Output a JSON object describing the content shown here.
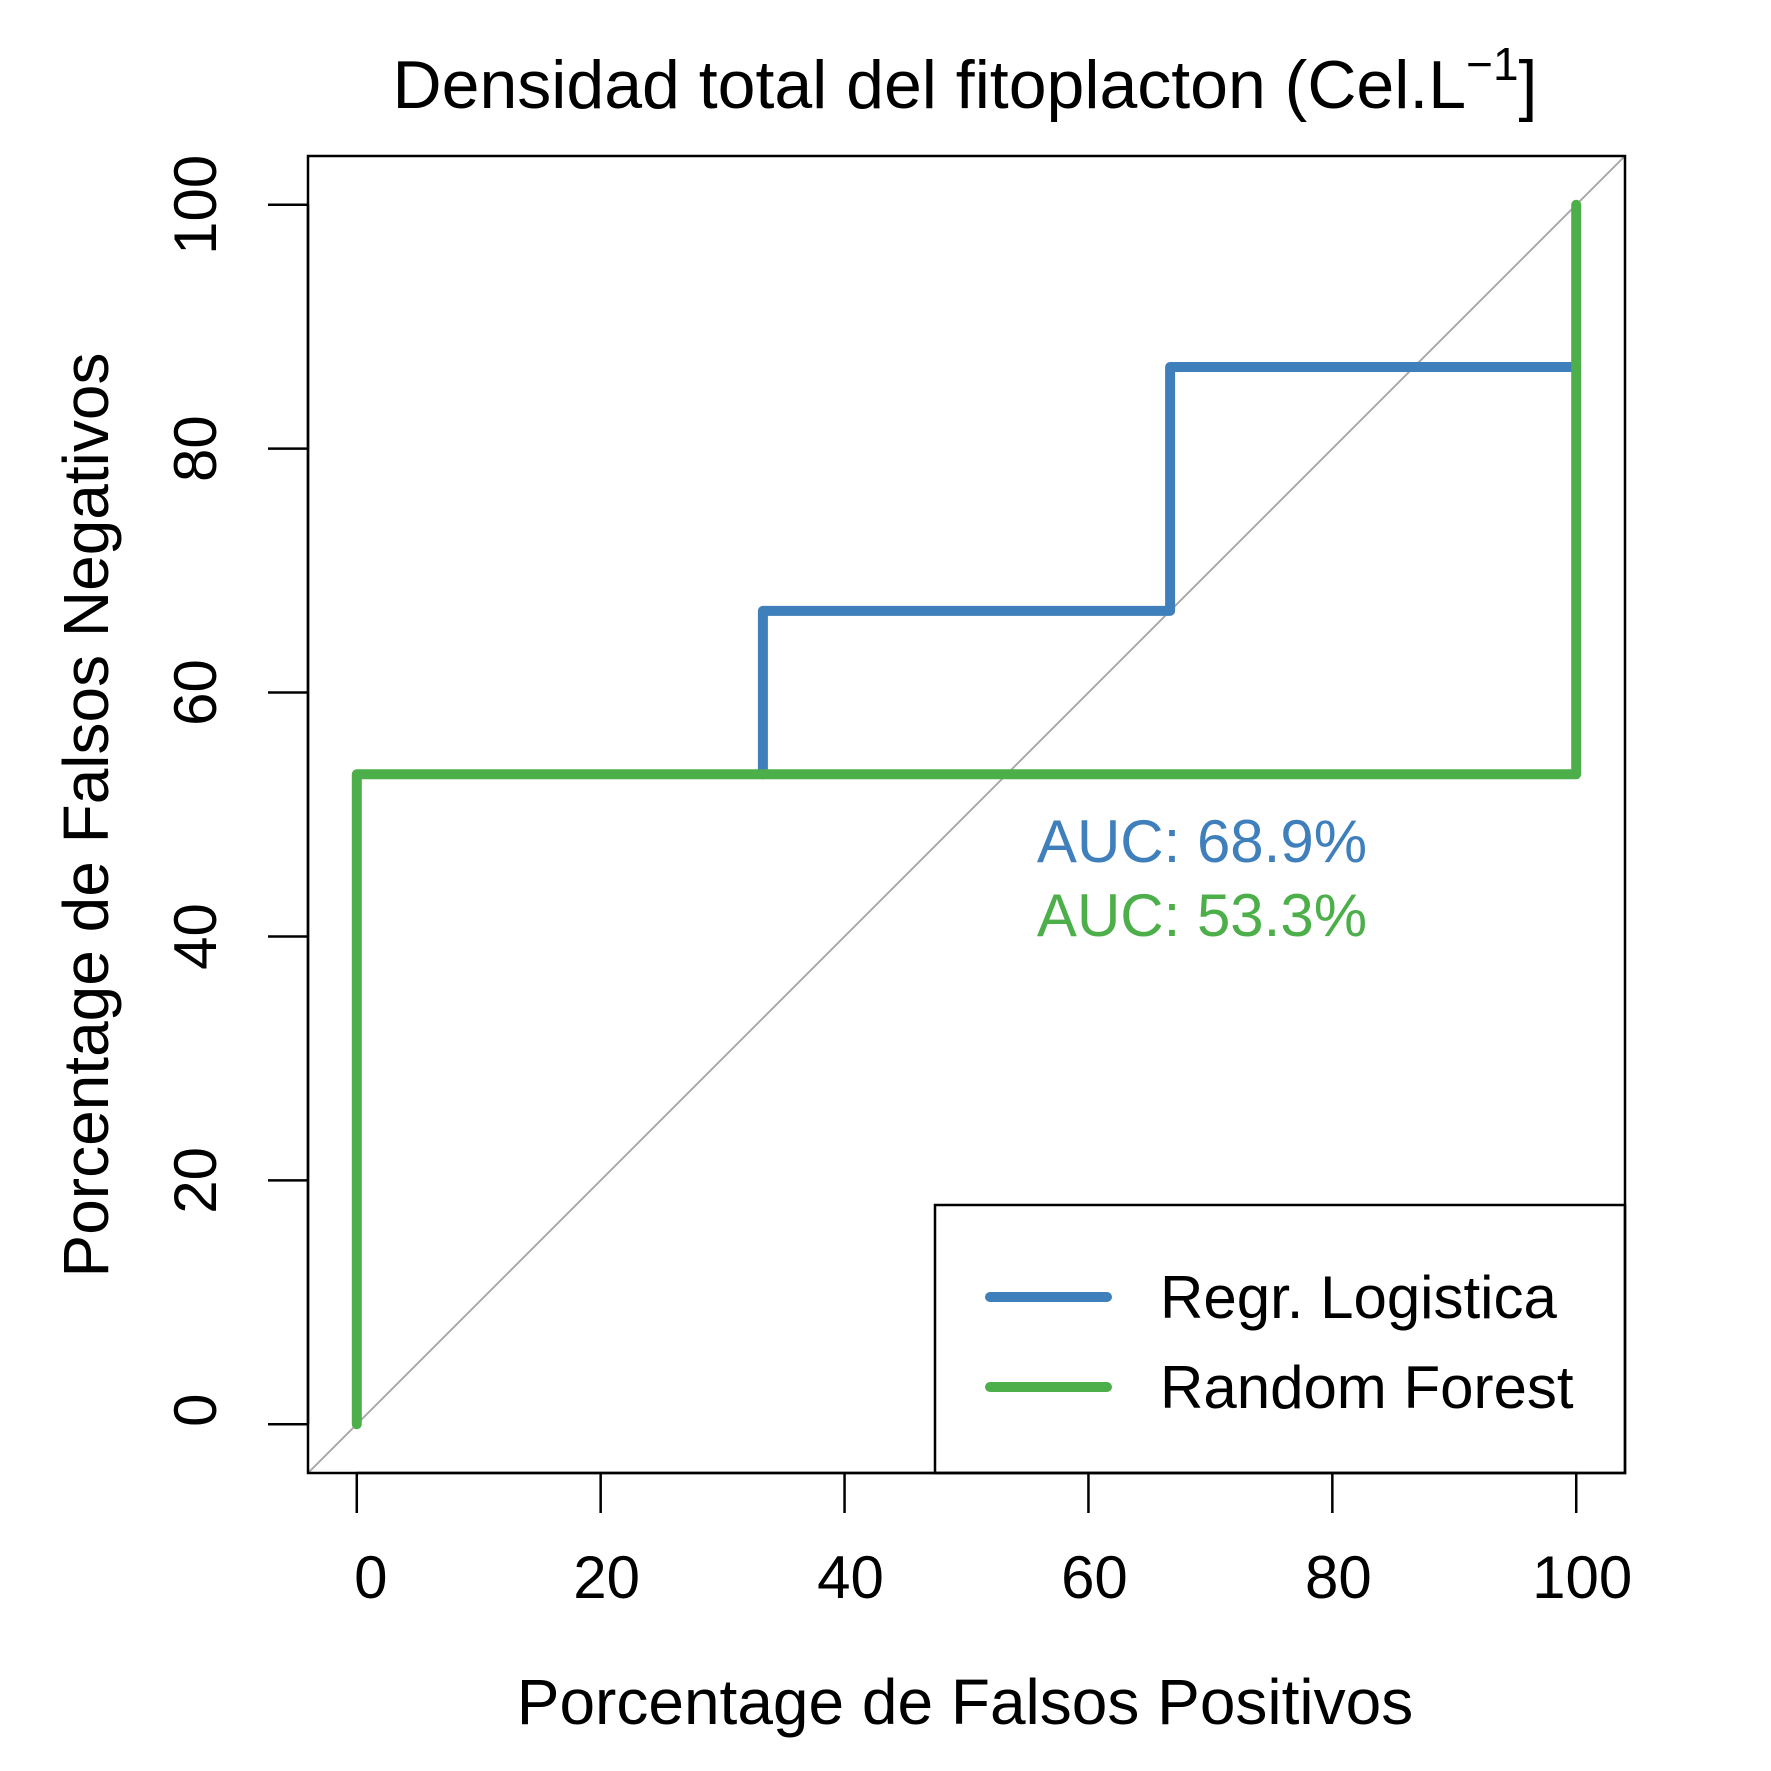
{
  "chart_data": {
    "type": "line",
    "title": "Densidad total del fitoplacton (Cel.L",
    "title_superscript": "−1",
    "title_suffix": "]",
    "xlabel": "Porcentage de Falsos Positivos",
    "ylabel": "Porcentage de Falsos Negativos",
    "xlim": [
      -4,
      104
    ],
    "ylim": [
      -4,
      104
    ],
    "x_ticks": [
      0,
      20,
      40,
      60,
      80,
      100
    ],
    "y_ticks": [
      0,
      20,
      40,
      60,
      80,
      100
    ],
    "x_tick_labels": [
      "0",
      "20",
      "40",
      "60",
      "80",
      "100"
    ],
    "y_tick_labels": [
      "0",
      "20",
      "40",
      "60",
      "80",
      "100"
    ],
    "grid": false,
    "reference_line": {
      "type": "diagonal",
      "color": "#aaaaaa"
    },
    "series": [
      {
        "name": "Regr. Logistica",
        "color": "#3f7fbb",
        "x": [
          33.3,
          33.3,
          66.7,
          66.7,
          100
        ],
        "y": [
          53.3,
          66.7,
          66.7,
          86.7,
          86.7
        ]
      },
      {
        "name": "Random Forest",
        "color": "#4daf4a",
        "x": [
          0,
          0,
          100,
          100
        ],
        "y": [
          0,
          53.3,
          53.3,
          100
        ]
      }
    ],
    "annotations": [
      {
        "text": "AUC: 68.9%",
        "color": "#3f7fbb"
      },
      {
        "text": "AUC: 53.3%",
        "color": "#4daf4a"
      }
    ],
    "legend": {
      "position": "bottom-right",
      "entries": [
        "Regr. Logistica",
        "Random Forest"
      ]
    }
  }
}
